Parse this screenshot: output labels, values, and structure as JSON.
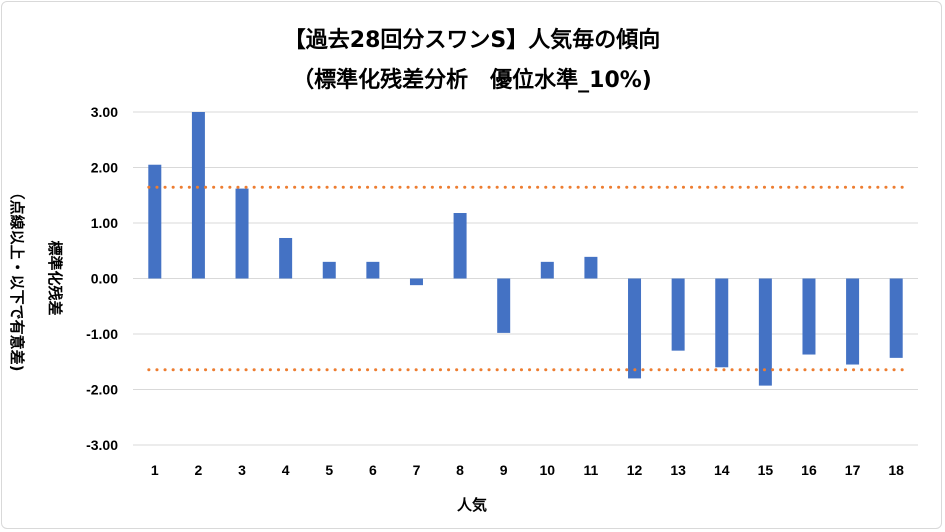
{
  "chart_data": {
    "type": "bar",
    "title_line1": "【過去28回分スワンS】人気毎の傾向",
    "title_line2": "（標準化残差分析　優位水準_10%)",
    "xlabel": "人気",
    "ylabel_line1": "標準化残差",
    "ylabel_line2": "（点線以上・以下で有意差)",
    "categories": [
      "1",
      "2",
      "3",
      "4",
      "5",
      "6",
      "7",
      "8",
      "9",
      "10",
      "11",
      "12",
      "13",
      "14",
      "15",
      "16",
      "17",
      "18"
    ],
    "values": [
      2.05,
      3.0,
      1.62,
      0.73,
      0.3,
      0.3,
      -0.12,
      1.18,
      -0.98,
      0.3,
      0.39,
      -1.8,
      -1.3,
      -1.6,
      -1.93,
      -1.37,
      -1.55,
      -1.43
    ],
    "yticks": [
      "3.00",
      "2.00",
      "1.00",
      "0.00",
      "-1.00",
      "-2.00",
      "-3.00"
    ],
    "ylim": [
      -3,
      3
    ],
    "threshold_upper": 1.645,
    "threshold_lower": -1.645,
    "grid": true,
    "legend": "none",
    "bar_color": "#4472c4",
    "threshold_color": "#ed7d31",
    "grid_color": "#d9d9d9"
  }
}
